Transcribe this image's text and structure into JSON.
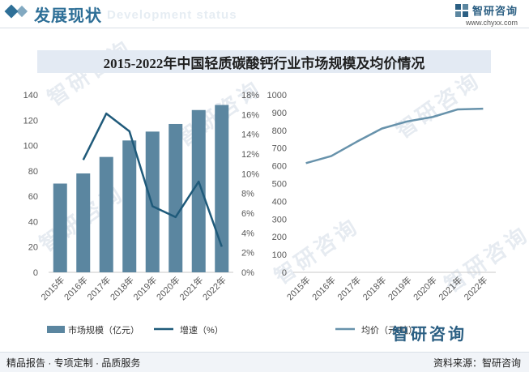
{
  "header": {
    "title": "发展现状",
    "subtitle": "Development status",
    "brand_name": "智研咨询",
    "brand_url": "www.chyxx.com"
  },
  "colors": {
    "bar": "#5b86a0",
    "growth_line": "#1f5a7a",
    "price_line": "#6792ab",
    "header_accent": "#2e6f97",
    "brand": "#2b5f83"
  },
  "chart_data": [
    {
      "type": "bar",
      "title": "2015-2022年中国轻质碳酸钙行业市场规模及均价情况",
      "categories": [
        "2015年",
        "2016年",
        "2017年",
        "2018年",
        "2019年",
        "2020年",
        "2021年",
        "2022年"
      ],
      "series": [
        {
          "name": "市场规模（亿元）",
          "type": "bar",
          "axis": "left",
          "values": [
            70,
            78,
            91,
            104,
            111,
            117,
            128,
            132
          ]
        },
        {
          "name": "增速（%）",
          "type": "line",
          "axis": "right",
          "values": [
            null,
            11.4,
            16.1,
            14.3,
            6.7,
            5.6,
            9.2,
            2.6
          ]
        }
      ],
      "y_left": {
        "min": 0,
        "max": 140,
        "step": 20,
        "ticks": [
          "0",
          "20",
          "40",
          "60",
          "80",
          "100",
          "120",
          "140"
        ]
      },
      "y_right": {
        "min": 0,
        "max": 18,
        "step": 2,
        "ticks": [
          "0%",
          "2%",
          "4%",
          "6%",
          "8%",
          "10%",
          "12%",
          "14%",
          "16%",
          "18%"
        ]
      },
      "legend": "bottom",
      "grid": false
    },
    {
      "type": "line",
      "categories": [
        "2015年",
        "2016年",
        "2017年",
        "2018年",
        "2019年",
        "2020年",
        "2021年",
        "2022年"
      ],
      "series": [
        {
          "name": "均价（元/吨）",
          "values": [
            615,
            655,
            735,
            810,
            850,
            875,
            918,
            922
          ]
        }
      ],
      "y": {
        "min": 0,
        "max": 1000,
        "step": 100,
        "ticks": [
          "0",
          "100",
          "200",
          "300",
          "400",
          "500",
          "600",
          "700",
          "800",
          "900",
          "1000"
        ]
      },
      "legend": "bottom",
      "grid": false
    }
  ],
  "watermark": "智研咨询",
  "footer": {
    "left": "精品报告 · 专项定制 · 品质服务",
    "right": "资料来源：智研咨询",
    "big_brand": "智研咨询"
  }
}
